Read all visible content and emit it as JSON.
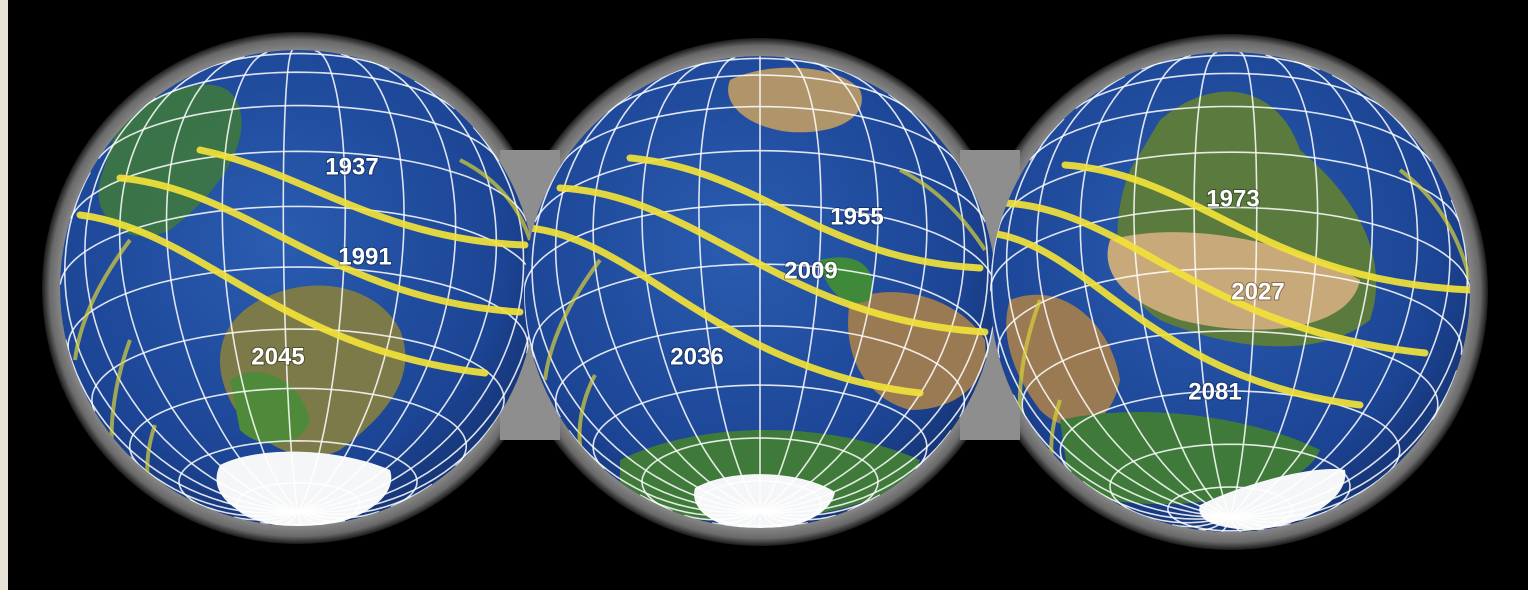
{
  "globes": [
    {
      "paths": [
        "1937",
        "1991",
        "2045"
      ]
    },
    {
      "paths": [
        "1955",
        "2009",
        "2036"
      ]
    },
    {
      "paths": [
        "1973",
        "2027",
        "2081"
      ]
    }
  ]
}
